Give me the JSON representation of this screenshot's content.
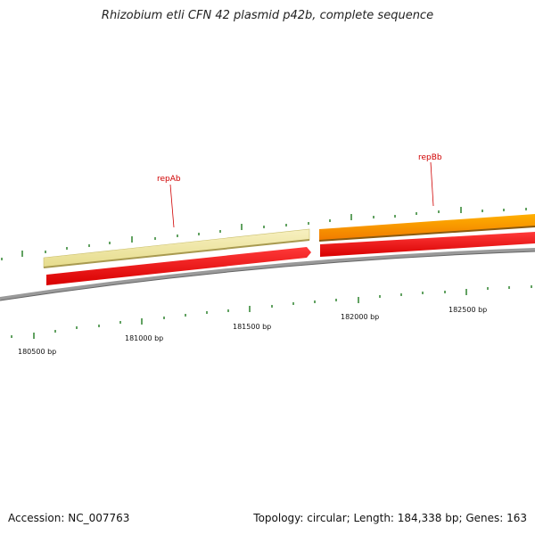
{
  "title": "Rhizobium etli CFN 42 plasmid p42b, complete sequence",
  "footer": {
    "accession": "Accession: NC_007763",
    "summary": "Topology: circular; Length: 184,338 bp; Genes: 163"
  },
  "map": {
    "topology": "circular",
    "length_bp": 184338,
    "genes_count": 163,
    "tick_labels": [
      "180500 bp",
      "181000 bp",
      "181500 bp",
      "182000 bp",
      "182500 bp"
    ],
    "gene_labels": [
      "repAb",
      "repBb"
    ],
    "colors": {
      "backbone": "#888888",
      "cds": "#ff0000",
      "repAb_gene": "#f0e6a0",
      "repBb_gene": "#ff9900",
      "tick": "#1a7a1a",
      "label": "#d00000"
    }
  }
}
